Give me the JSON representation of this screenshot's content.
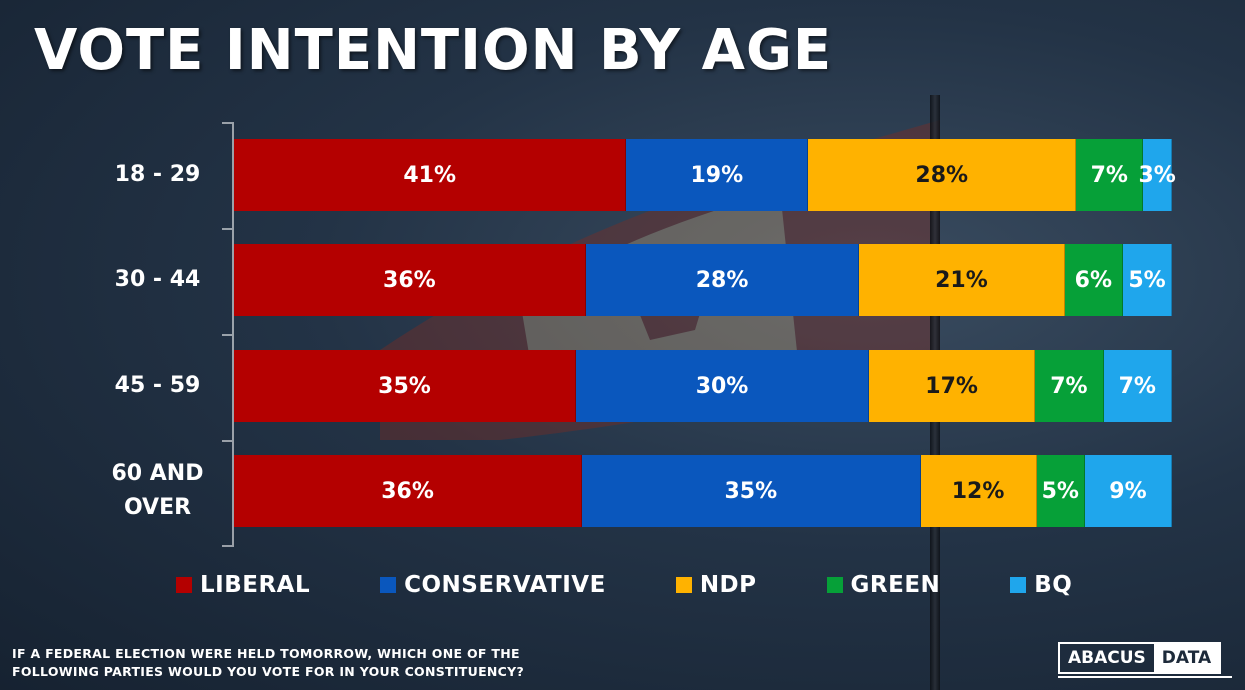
{
  "title": "VOTE INTENTION BY AGE",
  "colors": {
    "LIBERAL": "#b40000",
    "CONSERVATIVE": "#0a57bd",
    "NDP": "#ffb200",
    "GREEN": "#06a038",
    "BQ": "#1fa6ec"
  },
  "chart_data": {
    "type": "bar",
    "orientation": "horizontal",
    "stacked": true,
    "title": "VOTE INTENTION BY AGE",
    "categories": [
      "18 - 29",
      "30 - 44",
      "45 - 59",
      "60 AND OVER"
    ],
    "series": [
      {
        "name": "LIBERAL",
        "values": [
          41,
          36,
          35,
          36
        ],
        "labels": [
          "41%",
          "36%",
          "35%",
          "36%"
        ]
      },
      {
        "name": "CONSERVATIVE",
        "values": [
          19,
          28,
          30,
          35
        ],
        "labels": [
          "19%",
          "28%",
          "30%",
          "35%"
        ]
      },
      {
        "name": "NDP",
        "values": [
          28,
          21,
          17,
          12
        ],
        "labels": [
          "28%",
          "21%",
          "17%",
          "12%"
        ]
      },
      {
        "name": "GREEN",
        "values": [
          7,
          6,
          7,
          5
        ],
        "labels": [
          "7%",
          "6%",
          "7%",
          "5%"
        ]
      },
      {
        "name": "BQ",
        "values": [
          3,
          5,
          7,
          9
        ],
        "labels": [
          "3%",
          "5%",
          "7%",
          "9%"
        ]
      }
    ],
    "legend_position": "bottom"
  },
  "footnote": {
    "line1": "IF A FEDERAL ELECTION WERE HELD TOMORROW, WHICH ONE OF THE",
    "line2": "FOLLOWING PARTIES WOULD YOU VOTE FOR IN YOUR CONSTITUENCY?"
  },
  "logo": {
    "part1": "ABACUS",
    "part2": "DATA"
  }
}
